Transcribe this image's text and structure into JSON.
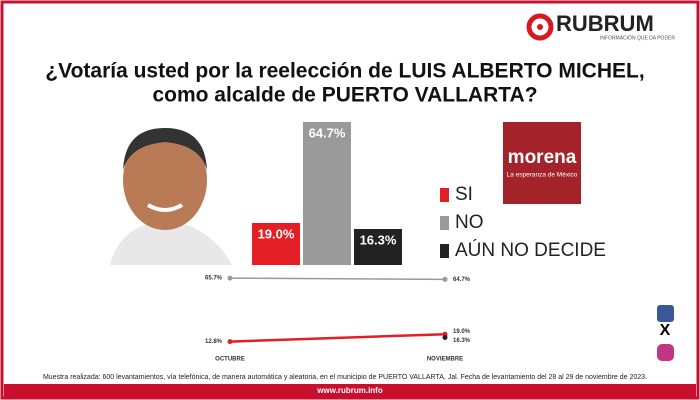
{
  "header": {
    "brand": "RUBRUM",
    "tagline": "INFORMACIÓN QUE DA PODER"
  },
  "chart_data": [
    {
      "type": "bar",
      "title": [
        "¿Votaría usted por la reelección de LUIS ALBERTO MICHEL,",
        "como alcalde de PUERTO VALLARTA?"
      ],
      "categories": [
        "SI",
        "NO",
        "AÚN NO DECIDE"
      ],
      "values": [
        19.0,
        64.7,
        16.3
      ],
      "value_labels": [
        "19.0%",
        "64.7%",
        "16.3%"
      ],
      "colors": [
        "#e31e24",
        "#9a9a9a",
        "#222222"
      ]
    },
    {
      "type": "line",
      "categories": [
        "OCTUBRE",
        "NOVIEMBRE"
      ],
      "series": [
        {
          "color": "#9a9a9a",
          "values": [
            65.7,
            64.7
          ],
          "value_labels": [
            "65.7%",
            "64.7%"
          ]
        },
        {
          "color": "#e31e24",
          "values": [
            12.8,
            19.0
          ],
          "value_labels": [
            "12.8%",
            "19.0%"
          ]
        },
        {
          "color": "#222222",
          "values": [
            null,
            16.3
          ],
          "value_labels": [
            null,
            "16.3%"
          ]
        }
      ]
    }
  ],
  "party": {
    "name": "morena",
    "slogan": "La esperanza de México"
  },
  "footer": {
    "note": "Muestra realizada: 600 levantamientos, vía telefónica, de manera automática y aleatoria, en el municipio de PUERTO VALLARTA, Jal. Fecha de levantamiento del 28 al 29 de noviembre de 2023.",
    "url": "www.rubrum.info"
  }
}
